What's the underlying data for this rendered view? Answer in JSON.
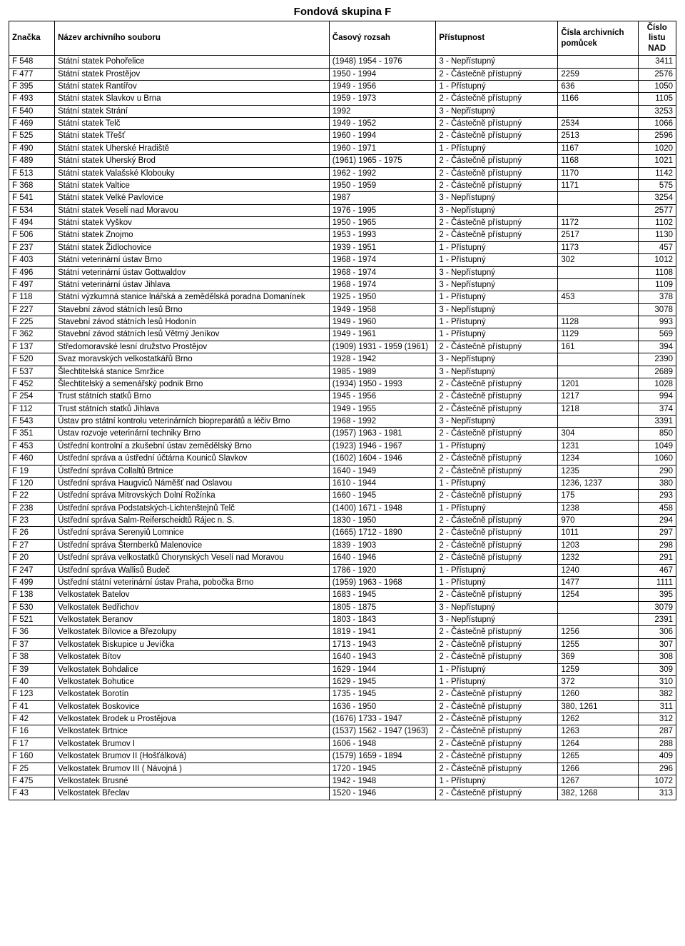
{
  "title": "Fondová skupina F",
  "columns": [
    "Značka",
    "Název archivního souboru",
    "Časový rozsah",
    "Přístupnost",
    "Čísla archivních pomůcek",
    "Číslo listu NAD"
  ],
  "rows": [
    [
      "F 548",
      "Státní statek Pohořelice",
      "(1948) 1954 - 1976",
      "3 - Nepřístupný",
      "",
      "3411"
    ],
    [
      "F 477",
      "Státní statek Prostějov",
      "1950 - 1994",
      "2 - Částečně přístupný",
      "2259",
      "2576"
    ],
    [
      "F 395",
      "Státní statek Rantířov",
      "1949 - 1956",
      "1 - Přístupný",
      "636",
      "1050"
    ],
    [
      "F 493",
      "Státní statek Slavkov u Brna",
      "1959 - 1973",
      "2 - Částečně přístupný",
      "1166",
      "1105"
    ],
    [
      "F 540",
      "Státní statek Strání",
      "1992",
      "3 - Nepřístupný",
      "",
      "3253"
    ],
    [
      "F 469",
      "Státní statek Telč",
      "1949 - 1952",
      "2 - Částečně přístupný",
      "2534",
      "1066"
    ],
    [
      "F 525",
      "Státní statek Třešť",
      "1960 - 1994",
      "2 - Částečně přístupný",
      "2513",
      "2596"
    ],
    [
      "F 490",
      "Státní statek Uherské Hradiště",
      "1960 - 1971",
      "1 - Přístupný",
      "1167",
      "1020"
    ],
    [
      "F 489",
      "Státní statek Uherský Brod",
      "(1961) 1965 - 1975",
      "2 - Částečně přístupný",
      "1168",
      "1021"
    ],
    [
      "F 513",
      "Státní statek Valašské Klobouky",
      "1962 - 1992",
      "2 - Částečně přístupný",
      "1170",
      "1142"
    ],
    [
      "F 368",
      "Státní statek Valtice",
      "1950 - 1959",
      "2 - Částečně přístupný",
      "1171",
      "575"
    ],
    [
      "F 541",
      "Státní statek Velké Pavlovice",
      "1987",
      "3 - Nepřístupný",
      "",
      "3254"
    ],
    [
      "F 534",
      "Státní statek Veselí nad Moravou",
      "1976 - 1995",
      "3 - Nepřístupný",
      "",
      "2577"
    ],
    [
      "F 494",
      "Státní statek Vyškov",
      "1950 - 1965",
      "2 - Částečně přístupný",
      "1172",
      "1102"
    ],
    [
      "F 506",
      "Státní statek Znojmo",
      "1953 - 1993",
      "2 - Částečně přístupný",
      "2517",
      "1130"
    ],
    [
      "F 237",
      "Státní statek Židlochovice",
      "1939 - 1951",
      "1 - Přístupný",
      "1173",
      "457"
    ],
    [
      "F 403",
      "Státní veterinární ústav Brno",
      "1968 - 1974",
      "1 - Přístupný",
      "302",
      "1012"
    ],
    [
      "F 496",
      "Státní veterinární ústav Gottwaldov",
      "1968 - 1974",
      "3 - Nepřístupný",
      "",
      "1108"
    ],
    [
      "F 497",
      "Státní veterinární ústav Jihlava",
      "1968 - 1974",
      "3 - Nepřístupný",
      "",
      "1109"
    ],
    [
      "F 118",
      "Státní výzkumná stanice lnářská a zemědělská poradna Domanínek",
      "1925 - 1950",
      "1 - Přístupný",
      "453",
      "378"
    ],
    [
      "F 227",
      "Stavební závod státních lesů Brno",
      "1949 - 1958",
      "3 - Nepřístupný",
      "",
      "3078"
    ],
    [
      "F 225",
      "Stavební závod státních lesů Hodonín",
      "1949 - 1960",
      "1 - Přístupný",
      "1128",
      "993"
    ],
    [
      "F 362",
      "Stavební závod státních lesů Větrný Jeníkov",
      "1949 - 1961",
      "1 - Přístupný",
      "1129",
      "569"
    ],
    [
      "F 137",
      "Středomoravské lesní družstvo Prostějov",
      "(1909) 1931 - 1959 (1961)",
      "2 - Částečně přístupný",
      "161",
      "394"
    ],
    [
      "F 520",
      "Svaz moravských velkostatkářů Brno",
      "1928 - 1942",
      "3 - Nepřístupný",
      "",
      "2390"
    ],
    [
      "F 537",
      "Šlechtitelská stanice Smržice",
      "1985 - 1989",
      "3 - Nepřístupný",
      "",
      "2689"
    ],
    [
      "F 452",
      "Šlechtitelský a semenářský podnik Brno",
      "(1934) 1950 - 1993",
      "2 - Částečně přístupný",
      "1201",
      "1028"
    ],
    [
      "F 254",
      "Trust státních statků Brno",
      "1945 - 1956",
      "2 - Částečně přístupný",
      "1217",
      "994"
    ],
    [
      "F 112",
      "Trust státních statků Jihlava",
      "1949 - 1955",
      "2 - Částečně přístupný",
      "1218",
      "374"
    ],
    [
      "F 543",
      "Ústav pro státní kontrolu veterinárních biopreparátů a léčiv Brno",
      "1968 - 1992",
      "3 - Nepřístupný",
      "",
      "3391"
    ],
    [
      "F 351",
      "Ústav rozvoje veterinární techniky Brno",
      "(1957) 1963 - 1981",
      "2 - Částečně přístupný",
      "304",
      "850"
    ],
    [
      "F 453",
      "Ústřední kontrolní a zkušební ústav zemědělský  Brno",
      "(1923) 1946 - 1967",
      "1 - Přístupný",
      "1231",
      "1049"
    ],
    [
      "F 460",
      "Ústřední správa a ústřední účtárna Kouniců Slavkov",
      "(1602) 1604 - 1946",
      "2 - Částečně přístupný",
      "1234",
      "1060"
    ],
    [
      "F 19",
      "Ústřední správa Collaltů Brtnice",
      "1640 - 1949",
      "2 - Částečně přístupný",
      "1235",
      "290"
    ],
    [
      "F 120",
      "Ústřední správa Haugviců Náměšť nad Oslavou",
      "1610 - 1944",
      "1 - Přístupný",
      "1236, 1237",
      "380"
    ],
    [
      "F 22",
      "Ústřední správa Mitrovských Dolní Rožínka",
      "1660 - 1945",
      "2 - Částečně přístupný",
      "175",
      "293"
    ],
    [
      "F 238",
      "Ústřední správa Podstatských-Lichtenštejnů Telč",
      "(1400) 1671 - 1948",
      "1 - Přístupný",
      "1238",
      "458"
    ],
    [
      "F 23",
      "Ústřední správa Salm-Reiferscheidtů Rájec n. S.",
      "1830 - 1950",
      "2 - Částečně přístupný",
      "970",
      "294"
    ],
    [
      "F 26",
      "Ústřední správa Serenyiů Lomnice",
      "(1665) 1712 - 1890",
      "2 - Částečně přístupný",
      "1011",
      "297"
    ],
    [
      "F 27",
      "Ústřední správa Šternberků Malenovice",
      "1839 - 1903",
      "2 - Částečně přístupný",
      "1203",
      "298"
    ],
    [
      "F 20",
      "Ústřední správa velkostatků Chorynských Veselí nad Moravou",
      "1640 - 1946",
      "2 - Částečně přístupný",
      "1232",
      "291"
    ],
    [
      "F 247",
      "Ústřední správa Wallisů Budeč",
      "1786 - 1920",
      "1 - Přístupný",
      "1240",
      "467"
    ],
    [
      "F 499",
      "Ústřední státní veterinární ústav Praha, pobočka Brno",
      "(1959) 1963 - 1968",
      "1 - Přístupný",
      "1477",
      "1111"
    ],
    [
      "F 138",
      "Velkostatek Batelov",
      "1683 - 1945",
      "2 - Částečně přístupný",
      "1254",
      "395"
    ],
    [
      "F 530",
      "Velkostatek Bedřichov",
      "1805 - 1875",
      "3 - Nepřístupný",
      "",
      "3079"
    ],
    [
      "F 521",
      "Velkostatek Beranov",
      "1803 - 1843",
      "3 - Nepřístupný",
      "",
      "2391"
    ],
    [
      "F 36",
      "Velkostatek Bílovice a Březolupy",
      "1819 - 1941",
      "2 - Částečně přístupný",
      "1256",
      "306"
    ],
    [
      "F 37",
      "Velkostatek Biskupice u Jevíčka",
      "1713 - 1943",
      "2 - Částečně přístupný",
      "1255",
      "307"
    ],
    [
      "F 38",
      "Velkostatek Bítov",
      "1640 - 1943",
      "2 - Částečně přístupný",
      "369",
      "308"
    ],
    [
      "F 39",
      "Velkostatek Bohdalice",
      "1629 - 1944",
      "1 - Přístupný",
      "1259",
      "309"
    ],
    [
      "F 40",
      "Velkostatek Bohutice",
      "1629 - 1945",
      "1 - Přístupný",
      "372",
      "310"
    ],
    [
      "F 123",
      "Velkostatek Borotín",
      "1735 - 1945",
      "2 - Částečně přístupný",
      "1260",
      "382"
    ],
    [
      "F 41",
      "Velkostatek Boskovice",
      "1636 - 1950",
      "2 - Částečně přístupný",
      "380, 1261",
      "311"
    ],
    [
      "F 42",
      "Velkostatek Brodek u Prostějova",
      "(1676) 1733 - 1947",
      "2 - Částečně přístupný",
      "1262",
      "312"
    ],
    [
      "F 16",
      "Velkostatek Brtnice",
      "(1537) 1562 - 1947 (1963)",
      "2 - Částečně přístupný",
      "1263",
      "287"
    ],
    [
      "F 17",
      "Velkostatek Brumov I",
      "1606 - 1948",
      "2 - Částečně přístupný",
      "1264",
      "288"
    ],
    [
      "F 160",
      "Velkostatek Brumov II (Hošťálková)",
      "(1579) 1659 - 1894",
      "2 - Částečně přístupný",
      "1265",
      "409"
    ],
    [
      "F 25",
      "Velkostatek Brumov III ( Návojná )",
      "1720 - 1945",
      "2 - Částečně přístupný",
      "1266",
      "296"
    ],
    [
      "F 475",
      "Velkostatek Brusné",
      "1942 - 1948",
      "1 - Přístupný",
      "1267",
      "1072"
    ],
    [
      "F 43",
      "Velkostatek Břeclav",
      "1520 - 1946",
      "2 - Částečně přístupný",
      "382, 1268",
      "313"
    ]
  ]
}
